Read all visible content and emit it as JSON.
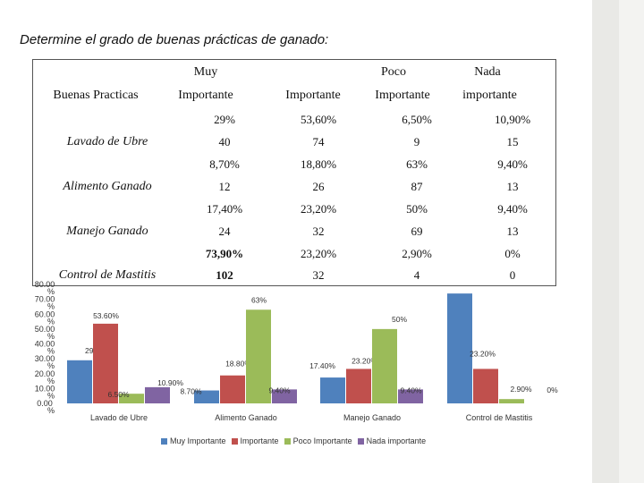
{
  "title": "Determine el grado de buenas prácticas de ganado:",
  "table": {
    "headers": {
      "practice": "Buenas Practicas",
      "col1_top": "Muy",
      "col1_bottom": "Importante",
      "col2": "Importante",
      "col3_top": "Poco",
      "col3_bottom": "Importante",
      "col4_top": "Nada",
      "col4_bottom": "importante"
    },
    "rows": [
      {
        "label": "Lavado de Ubre",
        "percent": [
          "29%",
          "53,60%",
          "6,50%",
          "10,90%"
        ],
        "count": [
          "40",
          "74",
          "9",
          "15"
        ]
      },
      {
        "label": "Alimento Ganado",
        "percent": [
          "8,70%",
          "18,80%",
          "63%",
          "9,40%"
        ],
        "count": [
          "12",
          "26",
          "87",
          "13"
        ]
      },
      {
        "label": "Manejo Ganado",
        "percent": [
          "17,40%",
          "23,20%",
          "50%",
          "9,40%"
        ],
        "count": [
          "24",
          "32",
          "69",
          "13"
        ]
      },
      {
        "label": "Control de Mastitis",
        "percent": [
          "73,90%",
          "23,20%",
          "2,90%",
          "0%"
        ],
        "count": [
          "102",
          "32",
          "4",
          "0"
        ]
      }
    ]
  },
  "chart_data": {
    "type": "bar",
    "categories": [
      "Lavado de Ubre",
      "Alimento Ganado",
      "Manejo Ganado",
      "Control de Mastitis"
    ],
    "series": [
      {
        "name": "Muy Importante",
        "values": [
          29,
          8.7,
          17.4,
          73.9
        ],
        "labels": [
          "29%",
          "8.70%",
          "17.40%",
          ""
        ],
        "color": "#4f81bd"
      },
      {
        "name": "Importante",
        "values": [
          53.6,
          18.8,
          23.2,
          23.2
        ],
        "labels": [
          "53.60%",
          "18.80%",
          "23.20%",
          "23.20%"
        ],
        "color": "#c0504d"
      },
      {
        "name": "Poco Importante",
        "values": [
          6.5,
          63,
          50,
          2.9
        ],
        "labels": [
          "6.50%",
          "63%",
          "50%",
          "2.90%"
        ],
        "color": "#9bbb59"
      },
      {
        "name": "Nada importante",
        "values": [
          10.9,
          9.4,
          9.4,
          0
        ],
        "labels": [
          "10.90%",
          "9.40%",
          "9.40%",
          "0%"
        ],
        "color": "#8064a2"
      }
    ],
    "yticks": [
      "80.00 %",
      "70.00 %",
      "60.00 %",
      "50.00 %",
      "40.00 %",
      "30.00 %",
      "20.00 %",
      "10.00 %",
      "0.00 %"
    ],
    "ylim": [
      0,
      80
    ],
    "grid": false,
    "legend_position": "bottom"
  }
}
